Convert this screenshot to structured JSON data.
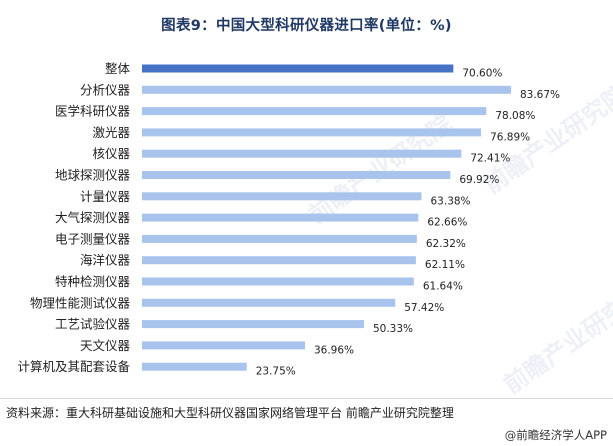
{
  "title": "图表9：中国大型科研仪器进口率(单位：%)",
  "source": "资料来源：重大科研基础设施和大型科研仪器国家网络管理平台 前瞻产业研究院整理",
  "brand": "@前瞻经济学人APP",
  "watermark": "前瞻产业研究院",
  "colors": {
    "highlight": "#4472c4",
    "bar": "#a8c4ec"
  },
  "chart_data": {
    "type": "bar",
    "orientation": "horizontal",
    "categories": [
      "整体",
      "分析仪器",
      "医学科研仪器",
      "激光器",
      "核仪器",
      "地球探测仪器",
      "计量仪器",
      "大气探测仪器",
      "电子测量仪器",
      "海洋仪器",
      "特种检测仪器",
      "物理性能测试仪器",
      "工艺试验仪器",
      "天文仪器",
      "计算机及其配套设备"
    ],
    "values": [
      70.6,
      83.67,
      78.08,
      76.89,
      72.41,
      69.92,
      63.38,
      62.66,
      62.32,
      62.11,
      61.64,
      57.42,
      50.33,
      36.96,
      23.75
    ],
    "value_labels": [
      "70.60%",
      "83.67%",
      "78.08%",
      "76.89%",
      "72.41%",
      "69.92%",
      "63.38%",
      "62.66%",
      "62.32%",
      "62.11%",
      "61.64%",
      "57.42%",
      "50.33%",
      "36.96%",
      "23.75%"
    ],
    "highlight_index": 0,
    "xlim": [
      0,
      90
    ],
    "grid": false,
    "legend": "none"
  }
}
